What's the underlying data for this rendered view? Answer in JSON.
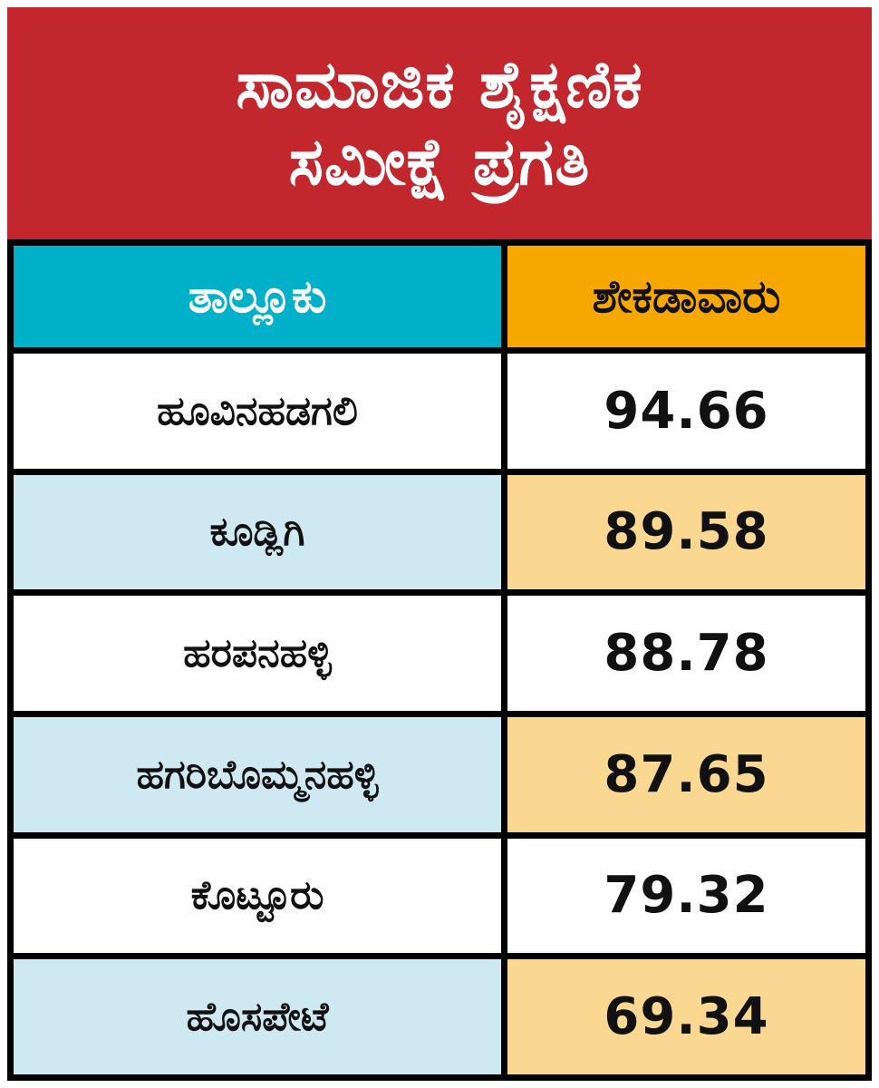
{
  "title": {
    "line1": "ಸಾಮಾಜಿಕ ಶೈಕ್ಷಣಿಕ",
    "line2": "ಸಮೀಕ್ಷೆ ಪ್ರಗತಿ"
  },
  "table": {
    "headers": {
      "taluk": "ತಾಲ್ಲೂಕು",
      "percentage": "ಶೇಕಡಾವಾರು"
    },
    "rows": [
      {
        "taluk": "ಹೂವಿನಹಡಗಲಿ",
        "value": "94.66"
      },
      {
        "taluk": "ಕೂಡ್ಲಿಗಿ",
        "value": "89.58"
      },
      {
        "taluk": "ಹರಪನಹಳ್ಳಿ",
        "value": "88.78"
      },
      {
        "taluk": "ಹಗರಿಬೊಮ್ಮನಹಳ್ಳಿ",
        "value": "87.65"
      },
      {
        "taluk": "ಕೊಟ್ಟೂರು",
        "value": "79.32"
      },
      {
        "taluk": "ಹೊಸಪೇಟೆ",
        "value": "69.34"
      }
    ]
  },
  "colors": {
    "banner-bg": "#c1272d",
    "banner-text": "#ffffff",
    "header-taluk-bg": "#00b1c9",
    "header-taluk-text": "#ffffff",
    "header-pct-bg": "#f6a800",
    "header-pct-text": "#111111",
    "row-alt-taluk-bg": "#cfe9f3",
    "row-alt-pct-bg": "#fbd892",
    "row-bg": "#ffffff",
    "grid-line": "#000000",
    "text": "#111111"
  },
  "chart_data": {
    "type": "table",
    "title": "ಸಾಮಾಜಿಕ ಶೈಕ್ಷಣಿಕ ಸಮೀಕ್ಷೆ ಪ್ರಗತಿ",
    "columns": [
      "ತಾಲ್ಲೂಕು",
      "ಶೇಕಡಾವಾರು"
    ],
    "categories": [
      "ಹೂವಿನಹಡಗಲಿ",
      "ಕೂಡ್ಲಿಗಿ",
      "ಹರಪನಹಳ್ಳಿ",
      "ಹಗರಿಬೊಮ್ಮನಹಳ್ಳಿ",
      "ಕೊಟ್ಟೂರು",
      "ಹೊಸಪೇಟೆ"
    ],
    "values": [
      94.66,
      89.58,
      88.78,
      87.65,
      79.32,
      69.34
    ],
    "legend_position": "none",
    "grid": true
  }
}
